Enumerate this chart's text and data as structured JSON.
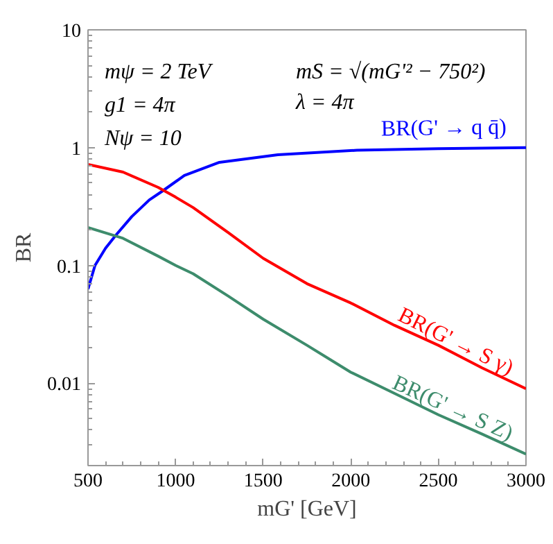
{
  "chart_data": {
    "type": "line",
    "xlabel": "mG' [GeV]",
    "ylabel": "BR",
    "log": "y",
    "xlim": [
      500,
      3000
    ],
    "ylim": [
      0.002,
      10
    ],
    "xticks": [
      500,
      1000,
      1500,
      2000,
      2500,
      3000
    ],
    "yticks": [
      0.01,
      0.1,
      1,
      10
    ],
    "grid": false,
    "line_style": "solid",
    "marker": "none",
    "x": [
      500,
      700,
      900,
      1000,
      1100,
      1300,
      1500,
      1750,
      2000,
      2250,
      2500,
      2750,
      3000
    ],
    "series": [
      {
        "name": "BR(G' → q q̄)",
        "color": "#0000ff",
        "x": [
          500,
          540,
          600,
          658,
          750,
          850,
          927,
          1050,
          1250,
          1584,
          2035,
          2500,
          3000
        ],
        "values": [
          0.063,
          0.1,
          0.14,
          0.18,
          0.26,
          0.36,
          0.43,
          0.58,
          0.75,
          0.87,
          0.95,
          0.98,
          1.0
        ]
      },
      {
        "name": "BR(G' → S γ)",
        "color": "#ff0000",
        "values": [
          0.72,
          0.62,
          0.46,
          0.38,
          0.31,
          0.19,
          0.115,
          0.07,
          0.048,
          0.031,
          0.021,
          0.0135,
          0.009
        ]
      },
      {
        "name": "BR(G' → S Z)",
        "color": "#3d8c6c",
        "values": [
          0.21,
          0.17,
          0.12,
          0.1,
          0.085,
          0.055,
          0.035,
          0.021,
          0.0124,
          0.0082,
          0.0054,
          0.0037,
          0.0025
        ]
      }
    ],
    "annotations": [
      "mψ = 2 TeV",
      "g1 = 4π",
      "Nψ = 10",
      "mS = √(mG'² − 750²)",
      "λ = 4π"
    ]
  }
}
